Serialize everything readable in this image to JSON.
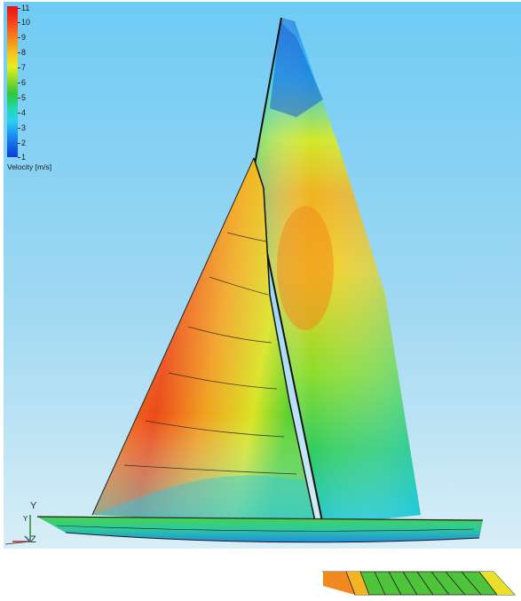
{
  "legend": {
    "ticks": [
      "11",
      "10",
      "9",
      "8",
      "7",
      "6",
      "5",
      "4",
      "3",
      "2",
      "1"
    ],
    "title": "Velocity [m/s]"
  },
  "triad": {
    "y_label": "Y",
    "z_label": "Z",
    "y_small": "Y"
  },
  "colors": {
    "sky_top": "#6ecbf5",
    "sky_bottom": "#d8eef6",
    "hull": "#3fd24a"
  }
}
